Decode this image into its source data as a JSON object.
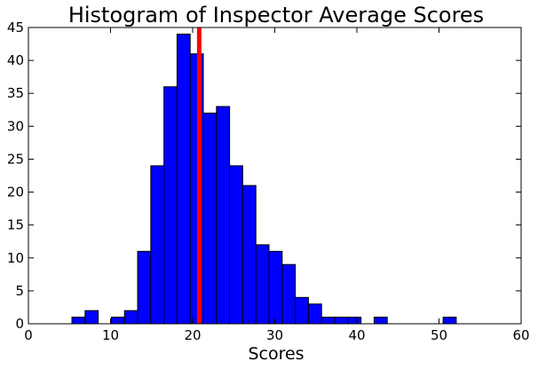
{
  "chart_data": {
    "type": "bar",
    "title": "Histogram of Inspector Average Scores",
    "xlabel": "Scores",
    "ylabel": "",
    "xlim": [
      0,
      60
    ],
    "ylim": [
      0,
      45
    ],
    "xticks": [
      "0",
      "10",
      "20",
      "30",
      "40",
      "50",
      "60"
    ],
    "yticks": [
      "0",
      "5",
      "10",
      "15",
      "20",
      "25",
      "30",
      "35",
      "40",
      "45"
    ],
    "grid": false,
    "bar_color": "#0000ff",
    "bar_edge_color": "#000000",
    "reference_line": {
      "x": 20.8,
      "color": "#ff0000"
    },
    "bins": [
      {
        "x0": 5.3,
        "x1": 6.9,
        "count": 1
      },
      {
        "x0": 6.9,
        "x1": 8.5,
        "count": 2
      },
      {
        "x0": 8.5,
        "x1": 10.1,
        "count": 0
      },
      {
        "x0": 10.1,
        "x1": 11.7,
        "count": 1
      },
      {
        "x0": 11.7,
        "x1": 13.3,
        "count": 2
      },
      {
        "x0": 13.3,
        "x1": 14.9,
        "count": 11
      },
      {
        "x0": 14.9,
        "x1": 16.5,
        "count": 24
      },
      {
        "x0": 16.5,
        "x1": 18.1,
        "count": 36
      },
      {
        "x0": 18.1,
        "x1": 19.7,
        "count": 44
      },
      {
        "x0": 19.7,
        "x1": 21.3,
        "count": 41
      },
      {
        "x0": 21.3,
        "x1": 22.9,
        "count": 32
      },
      {
        "x0": 22.9,
        "x1": 24.5,
        "count": 33
      },
      {
        "x0": 24.5,
        "x1": 26.1,
        "count": 24
      },
      {
        "x0": 26.1,
        "x1": 27.7,
        "count": 21
      },
      {
        "x0": 27.7,
        "x1": 29.3,
        "count": 12
      },
      {
        "x0": 29.3,
        "x1": 30.9,
        "count": 11
      },
      {
        "x0": 30.9,
        "x1": 32.5,
        "count": 9
      },
      {
        "x0": 32.5,
        "x1": 34.1,
        "count": 4
      },
      {
        "x0": 34.1,
        "x1": 35.7,
        "count": 3
      },
      {
        "x0": 35.7,
        "x1": 37.3,
        "count": 1
      },
      {
        "x0": 37.3,
        "x1": 38.9,
        "count": 1
      },
      {
        "x0": 38.9,
        "x1": 40.5,
        "count": 1
      },
      {
        "x0": 40.5,
        "x1": 42.1,
        "count": 0
      },
      {
        "x0": 42.1,
        "x1": 43.7,
        "count": 1
      },
      {
        "x0": 50.5,
        "x1": 52.1,
        "count": 1
      }
    ]
  }
}
